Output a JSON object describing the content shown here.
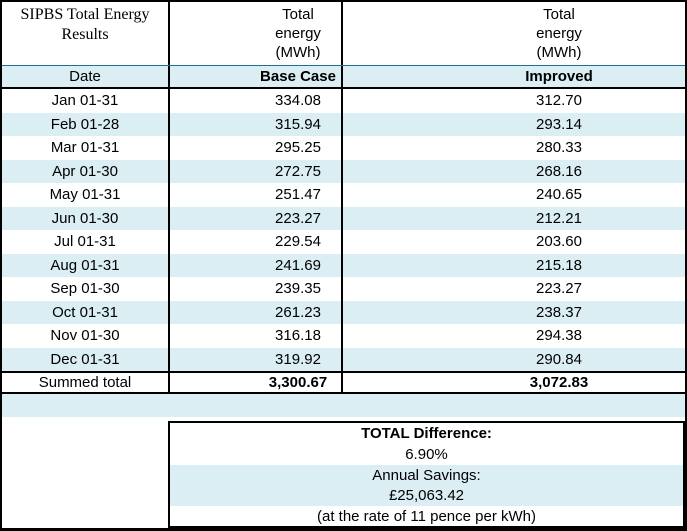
{
  "header": {
    "title": "SIPBS Total Energy Results",
    "energy_unit_lines": [
      "Total",
      "energy",
      "(MWh)"
    ],
    "date_label": "Date",
    "base_case_label": "Base Case",
    "improved_label": "Improved"
  },
  "rows": [
    {
      "date": "Jan 01-31",
      "base_case": "334.08",
      "improved": "312.70"
    },
    {
      "date": "Feb 01-28",
      "base_case": "315.94",
      "improved": "293.14"
    },
    {
      "date": "Mar 01-31",
      "base_case": "295.25",
      "improved": "280.33"
    },
    {
      "date": "Apr 01-30",
      "base_case": "272.75",
      "improved": "268.16"
    },
    {
      "date": "May 01-31",
      "base_case": "251.47",
      "improved": "240.65"
    },
    {
      "date": "Jun 01-30",
      "base_case": "223.27",
      "improved": "212.21"
    },
    {
      "date": "Jul 01-31",
      "base_case": "229.54",
      "improved": "203.60"
    },
    {
      "date": "Aug 01-31",
      "base_case": "241.69",
      "improved": "215.18"
    },
    {
      "date": "Sep 01-30",
      "base_case": "239.35",
      "improved": "223.27"
    },
    {
      "date": "Oct 01-31",
      "base_case": "261.23",
      "improved": "238.37"
    },
    {
      "date": "Nov 01-30",
      "base_case": "316.18",
      "improved": "294.38"
    },
    {
      "date": "Dec 01-31",
      "base_case": "319.92",
      "improved": "290.84"
    }
  ],
  "totals": {
    "label": "Summed total",
    "base_case": "3,300.67",
    "improved": "3,072.83"
  },
  "summary": {
    "difference_label": "TOTAL Difference:",
    "difference_value": "6.90%",
    "savings_label": "Annual Savings:",
    "savings_value": "£25,063.42",
    "rate_note": "(at the rate of 11 pence per kWh)"
  },
  "colors": {
    "band": "#daeef3",
    "border": "#000000",
    "header_rule": "#20708c",
    "text": "#000000"
  }
}
